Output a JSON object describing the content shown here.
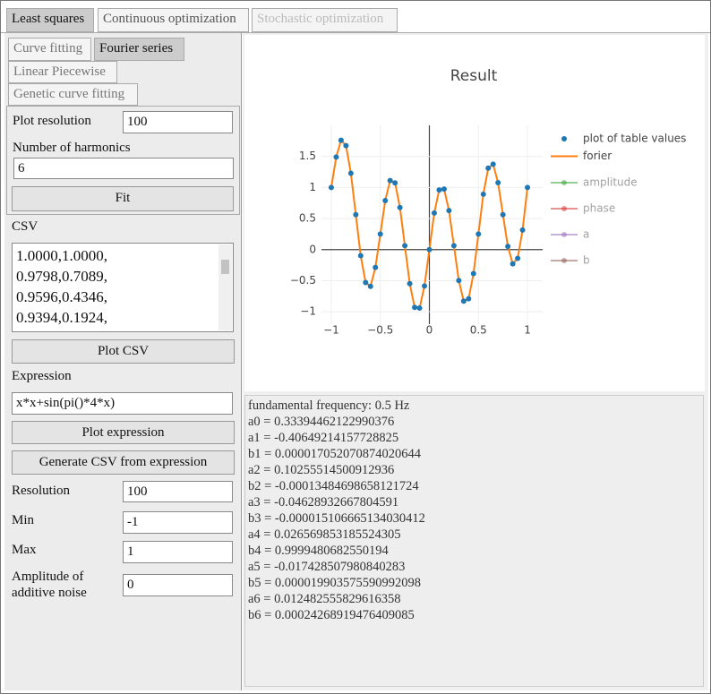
{
  "tabs": [
    "Least squares",
    "Continuous optimization",
    "Stochastic optimization"
  ],
  "subtabs": [
    "Curve fitting",
    "Fourier series",
    "Linear Piecewise",
    "Genetic curve fitting"
  ],
  "form": {
    "plot_resolution": {
      "label": "Plot resolution",
      "value": "100"
    },
    "harmonics": {
      "label": "Number of harmonics",
      "value": "6"
    },
    "fit": "Fit",
    "csv_label": "CSV",
    "csv_lines": [
      "1.0000,1.0000,",
      "0.9798,0.7089,",
      "0.9596,0.4346,",
      "0.9394,0.1924,"
    ],
    "plot_csv": "Plot CSV",
    "expression": {
      "label": "Expression",
      "value": "x*x+sin(pi()*4*x)"
    },
    "plot_expression": "Plot expression",
    "generate_csv": "Generate CSV from expression",
    "resolution": {
      "label": "Resolution",
      "value": "100"
    },
    "min": {
      "label": "Min",
      "value": "-1"
    },
    "max": {
      "label": "Max",
      "value": "1"
    },
    "noise": {
      "label": [
        "Amplitude of",
        "additive noise"
      ],
      "value": "0"
    }
  },
  "results": [
    "fundamental frequency: 0.5 Hz",
    "a0 = 0.33394462122990376",
    "a1 = -0.40649214157728825",
    "b1 = 0.000017052070874020644",
    "a2 = 0.10255514500912936",
    "b2 = -0.00013484698658121724",
    "a3 = -0.04628932667804591",
    "b3 = -0.000015106665134030412",
    "a4 = 0.026569853185524305",
    "b4 = 0.9999480682550194",
    "a5 = -0.017428507980840283",
    "b5 = 0.000019903575590992098",
    "a6 = 0.012482555829616358",
    "b6 = 0.00024268919476409085"
  ],
  "chart_data": {
    "type": "scatter-line",
    "title": "Result",
    "x": [
      -1,
      -0.95,
      -0.9,
      -0.85,
      -0.8,
      -0.75,
      -0.7,
      -0.65,
      -0.6,
      -0.55,
      -0.5,
      -0.45,
      -0.4,
      -0.35,
      -0.3,
      -0.25,
      -0.2,
      -0.15,
      -0.1,
      -0.05,
      0,
      0.05,
      0.1,
      0.15,
      0.2,
      0.25,
      0.3,
      0.35,
      0.4,
      0.45,
      0.5,
      0.55,
      0.6,
      0.65,
      0.7,
      0.75,
      0.8,
      0.85,
      0.9,
      0.95,
      1
    ],
    "series": [
      {
        "name": "plot of table values",
        "color": "#1f77b4",
        "mode": "markers",
        "values": [
          1.0,
          1.49,
          1.761,
          1.674,
          1.228,
          0.563,
          -0.098,
          -0.529,
          -0.591,
          -0.286,
          0.25,
          0.79,
          1.111,
          1.074,
          0.678,
          0.063,
          -0.548,
          -0.929,
          -0.941,
          -0.586,
          0,
          0.59,
          0.961,
          0.974,
          0.628,
          0.063,
          -0.498,
          -0.829,
          -0.791,
          -0.386,
          0.25,
          0.891,
          1.311,
          1.374,
          1.078,
          0.563,
          0.052,
          -0.229,
          -0.141,
          0.315,
          1.0
        ]
      },
      {
        "name": "forier",
        "color": "#ff7f0e",
        "mode": "lines",
        "values": [
          1.0,
          1.49,
          1.761,
          1.674,
          1.228,
          0.563,
          -0.098,
          -0.529,
          -0.591,
          -0.286,
          0.25,
          0.79,
          1.111,
          1.074,
          0.678,
          0.063,
          -0.548,
          -0.929,
          -0.941,
          -0.586,
          0,
          0.59,
          0.961,
          0.974,
          0.628,
          0.063,
          -0.498,
          -0.829,
          -0.791,
          -0.386,
          0.25,
          0.891,
          1.311,
          1.374,
          1.078,
          0.563,
          0.052,
          -0.229,
          -0.141,
          0.315,
          1.0
        ]
      }
    ],
    "legend_only": [
      {
        "name": "amplitude",
        "color": "#2ca02c"
      },
      {
        "name": "phase",
        "color": "#d62728"
      },
      {
        "name": "a",
        "color": "#9467bd"
      },
      {
        "name": "b",
        "color": "#8c564b"
      }
    ],
    "xlim": [
      -1.1,
      1.1
    ],
    "ylim": [
      -1.2,
      2
    ],
    "xticks": [
      {
        "value": -1,
        "label": "−1"
      },
      {
        "value": -0.5,
        "label": "−0.5"
      },
      0,
      0.5,
      1
    ],
    "yticks": [
      {
        "value": -1,
        "label": "−1"
      },
      {
        "value": -0.5,
        "label": "−0.5"
      },
      0,
      0.5,
      1,
      1.5
    ],
    "grid": true,
    "legend": "right"
  }
}
